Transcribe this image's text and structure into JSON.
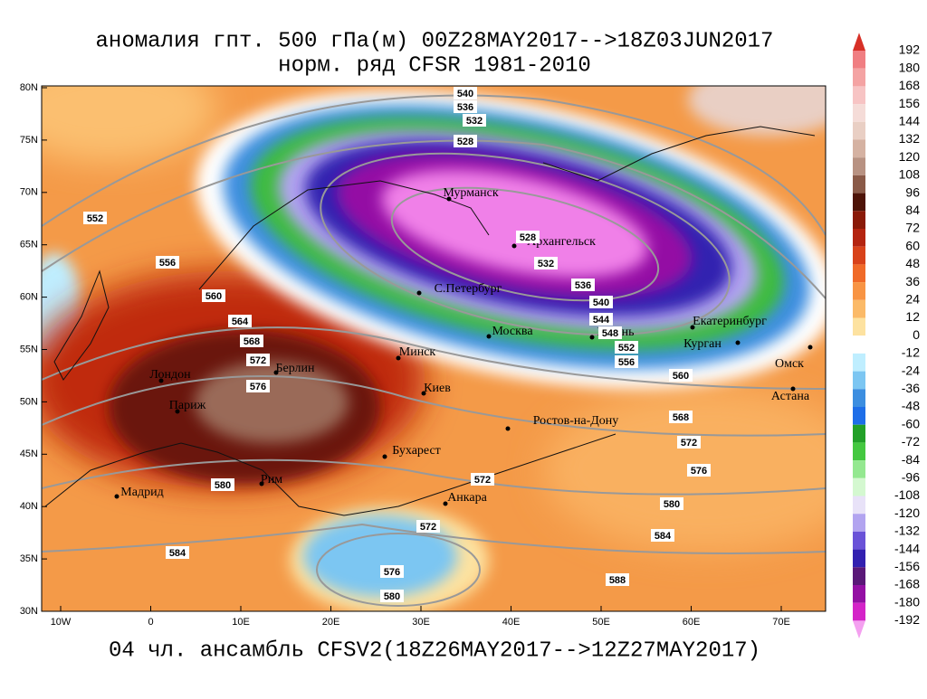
{
  "title": [
    "аномалия гпт. 500 гПа(м) 00Z28MAY2017-->18Z03JUN2017",
    "норм. ряд CFSR 1981-2010"
  ],
  "footer": "04 чл. ансамбль CFSV2(18Z26MAY2017-->12Z27MAY2017)",
  "lon_labels": [
    "10W",
    "0",
    "10E",
    "20E",
    "30E",
    "40E",
    "50E",
    "60E",
    "70E"
  ],
  "lat_labels": [
    "80N",
    "75N",
    "70N",
    "65N",
    "60N",
    "55N",
    "50N",
    "45N",
    "40N",
    "35N",
    "30N"
  ],
  "cities": [
    "Мурманск",
    "Архангельск",
    "С.Петербург",
    "Москва",
    "Казань",
    "Екатеринбург",
    "Курган",
    "Омск",
    "Астана",
    "Минск",
    "Киев",
    "Ростов-на-Дону",
    "Бухарест",
    "Анкара",
    "Рим",
    "Мадрид",
    "Париж",
    "Лондон",
    "Берлин"
  ],
  "contour_labels": [
    540,
    536,
    532,
    528,
    528,
    532,
    536,
    540,
    544,
    548,
    552,
    556,
    560,
    568,
    572,
    576,
    580,
    584,
    588,
    552,
    556,
    560,
    564,
    568,
    572,
    576,
    580,
    584,
    572,
    572,
    576,
    580
  ],
  "colorbar": {
    "levels": [
      192,
      180,
      168,
      156,
      144,
      132,
      120,
      108,
      96,
      84,
      72,
      60,
      48,
      36,
      24,
      12,
      0,
      -12,
      -24,
      -36,
      -48,
      -60,
      -72,
      -84,
      -96,
      -108,
      -120,
      -132,
      -144,
      -156,
      -168,
      -180,
      -192
    ],
    "colors": [
      "#d73027",
      "#f07e82",
      "#f4a3a3",
      "#f7c4c4",
      "#f5dcd8",
      "#e9cfc4",
      "#d5b2a2",
      "#b89282",
      "#8a5a48",
      "#4e1408",
      "#8a1a08",
      "#b42410",
      "#d8421a",
      "#f06a28",
      "#f89444",
      "#fbba68",
      "#fde2a0",
      "#ffffff",
      "#bfeeff",
      "#7cc6f2",
      "#3c8ee0",
      "#1e6ee8",
      "#22a028",
      "#44c840",
      "#94e890",
      "#d4f8d0",
      "#e8e2f8",
      "#b2a4f0",
      "#6a52d8",
      "#3220b0",
      "#5a1878",
      "#9410a4",
      "#d424c8",
      "#f4a0f0"
    ]
  }
}
